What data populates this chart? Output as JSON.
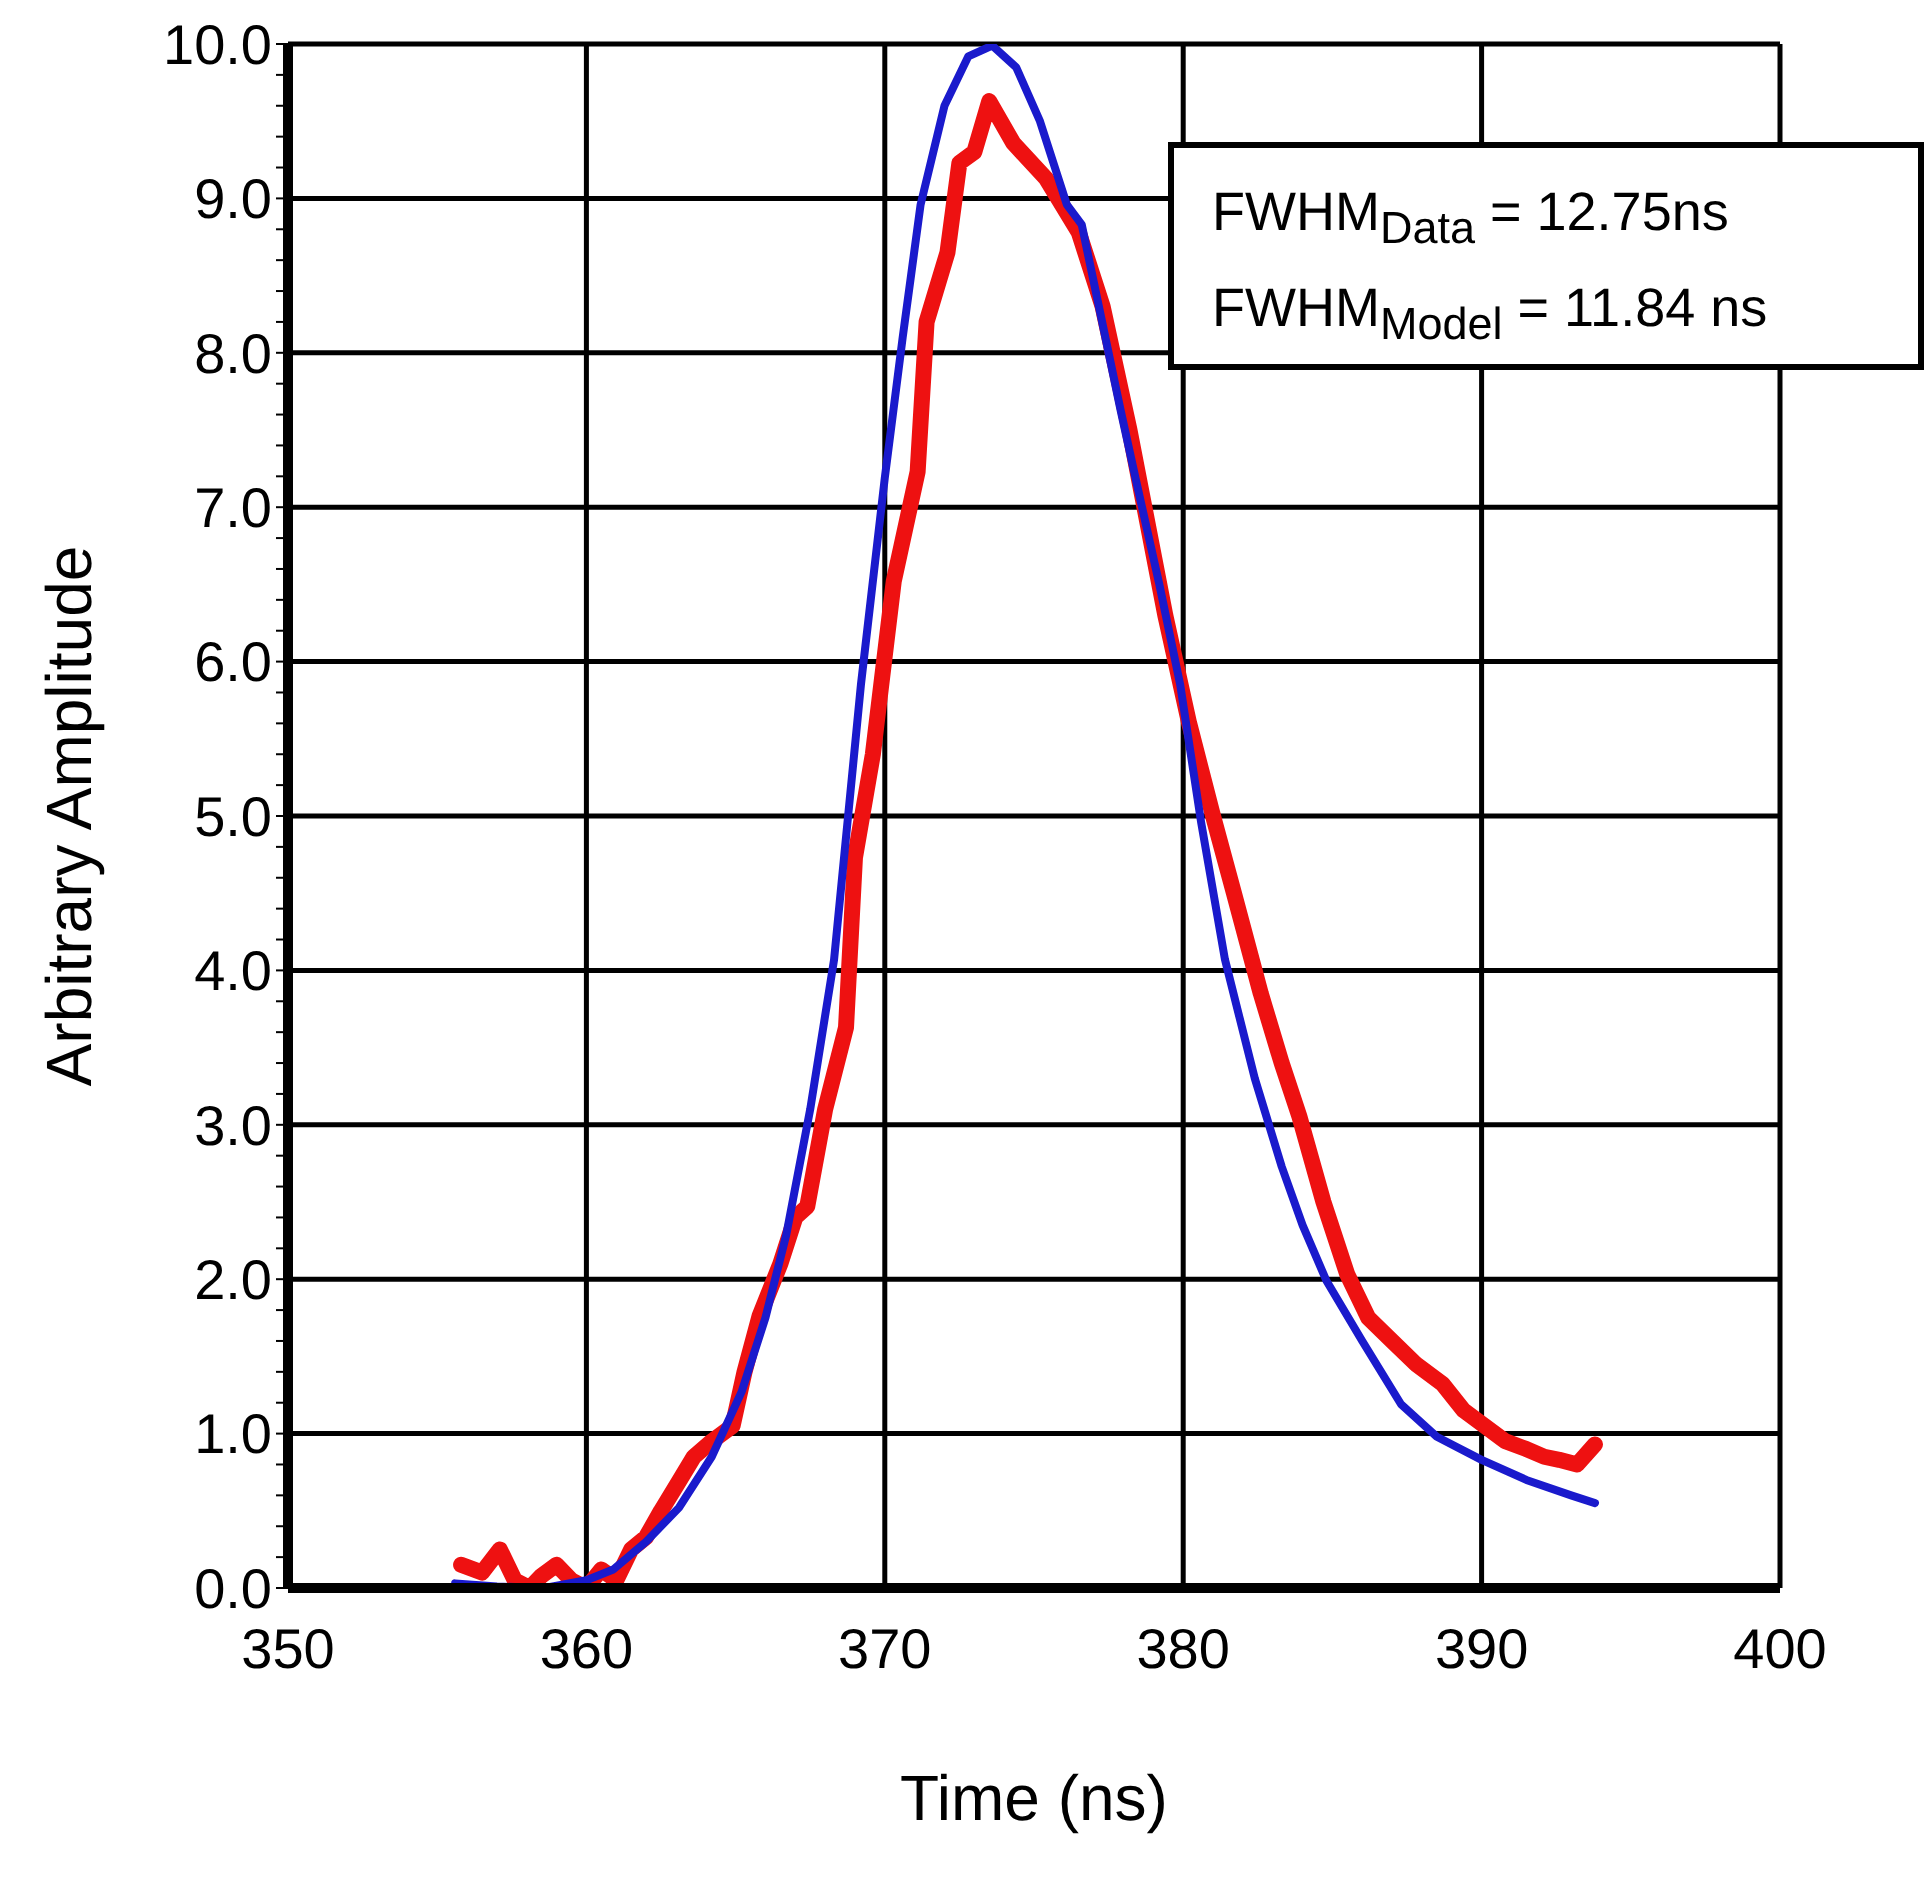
{
  "chart_data": {
    "type": "line",
    "xlabel": "Time (ns)",
    "ylabel": "Arbitrary Amplitude",
    "annotations": [
      "FWHM$_{Data}$ = 12.75ns",
      "FWHM$_{Model}$ = 11.84 ns"
    ],
    "xlim": [
      350,
      400
    ],
    "xticks": [
      350,
      360,
      370,
      380,
      390,
      400
    ],
    "ylim": [
      0,
      10
    ],
    "yticks": [
      {
        "value": 0,
        "label": "0.0"
      },
      {
        "value": 0.2,
        "label": null
      },
      {
        "value": 0.4,
        "label": null
      },
      {
        "value": 0.6,
        "label": null
      },
      {
        "value": 0.8,
        "label": null
      },
      {
        "value": 1,
        "label": "1.0"
      },
      {
        "value": 1.2,
        "label": null
      },
      {
        "value": 1.4,
        "label": null
      },
      {
        "value": 1.6,
        "label": null
      },
      {
        "value": 1.8,
        "label": null
      },
      {
        "value": 2,
        "label": "2.0"
      },
      {
        "value": 2.2,
        "label": null
      },
      {
        "value": 2.4,
        "label": null
      },
      {
        "value": 2.6,
        "label": null
      },
      {
        "value": 2.8,
        "label": null
      },
      {
        "value": 3,
        "label": "3.0"
      },
      {
        "value": 3.2,
        "label": null
      },
      {
        "value": 3.4,
        "label": null
      },
      {
        "value": 3.6,
        "label": null
      },
      {
        "value": 3.8,
        "label": null
      },
      {
        "value": 4,
        "label": "4.0"
      },
      {
        "value": 4.2,
        "label": null
      },
      {
        "value": 4.4,
        "label": null
      },
      {
        "value": 4.6,
        "label": null
      },
      {
        "value": 4.8,
        "label": null
      },
      {
        "value": 5,
        "label": "5.0"
      },
      {
        "value": 5.2,
        "label": null
      },
      {
        "value": 5.4,
        "label": null
      },
      {
        "value": 5.6,
        "label": null
      },
      {
        "value": 5.8,
        "label": null
      },
      {
        "value": 6,
        "label": "6.0"
      },
      {
        "value": 6.2,
        "label": null
      },
      {
        "value": 6.4,
        "label": null
      },
      {
        "value": 6.6,
        "label": null
      },
      {
        "value": 6.8,
        "label": null
      },
      {
        "value": 7,
        "label": "7.0"
      },
      {
        "value": 7.2,
        "label": null
      },
      {
        "value": 7.4,
        "label": null
      },
      {
        "value": 7.6,
        "label": null
      },
      {
        "value": 7.8,
        "label": null
      },
      {
        "value": 8,
        "label": "8.0"
      },
      {
        "value": 8.2,
        "label": null
      },
      {
        "value": 8.4,
        "label": null
      },
      {
        "value": 8.6,
        "label": null
      },
      {
        "value": 8.8,
        "label": null
      },
      {
        "value": 9,
        "label": "9.0"
      },
      {
        "value": 9.2,
        "label": null
      },
      {
        "value": 9.4,
        "label": null
      },
      {
        "value": 9.6,
        "label": null
      },
      {
        "value": 9.8,
        "label": null
      },
      {
        "value": 10,
        "label": "10.0"
      }
    ],
    "grid": true,
    "marker": "none",
    "line_style": "solid",
    "series": [
      {
        "color": "#ee1111",
        "x": [
          355.8,
          356.5,
          357.1,
          357.6,
          358.1,
          358.5,
          359.0,
          359.5,
          360.0,
          360.5,
          361.0,
          361.5,
          362.0,
          362.5,
          363.1,
          363.6,
          364.2,
          364.9,
          365.3,
          365.8,
          366.5,
          367.0,
          367.4,
          368.0,
          368.7,
          369.0,
          369.6,
          370.3,
          371.1,
          371.4,
          372.1,
          372.5,
          373.0,
          373.5,
          374.3,
          375.4,
          376.5,
          377.3,
          378.2,
          379.4,
          380.2,
          381.0,
          381.7,
          382.6,
          383.3,
          383.9,
          384.7,
          385.5,
          386.2,
          387.0,
          387.8,
          388.7,
          389.4,
          390.1,
          390.8,
          391.5,
          392.1,
          392.6,
          393.2,
          393.8
        ],
        "values": [
          0.15,
          0.1,
          0.25,
          0.05,
          0.0,
          0.08,
          0.15,
          0.05,
          0.0,
          0.12,
          0.05,
          0.25,
          0.33,
          0.5,
          0.69,
          0.85,
          0.95,
          1.05,
          1.4,
          1.76,
          2.1,
          2.4,
          2.47,
          3.1,
          3.63,
          4.73,
          5.4,
          6.52,
          7.23,
          8.2,
          8.65,
          9.23,
          9.3,
          9.63,
          9.36,
          9.13,
          8.78,
          8.3,
          7.5,
          6.3,
          5.6,
          5.0,
          4.5,
          3.85,
          3.4,
          3.05,
          2.5,
          2.03,
          1.75,
          1.6,
          1.45,
          1.32,
          1.15,
          1.05,
          0.95,
          0.9,
          0.85,
          0.83,
          0.8,
          0.93
        ]
      },
      {
        "color": "#1a1acc",
        "x": [
          355.6,
          357.0,
          358.6,
          360.0,
          360.9,
          362.0,
          363.1,
          364.2,
          365.2,
          366.0,
          366.7,
          367.5,
          368.3,
          369.2,
          370.0,
          370.6,
          371.2,
          372.0,
          372.8,
          373.6,
          374.4,
          375.2,
          376.1,
          376.6,
          377.9,
          378.4,
          379.2,
          379.9,
          380.6,
          381.4,
          382.4,
          383.3,
          384.0,
          384.8,
          386.0,
          387.3,
          388.5,
          390.0,
          391.5,
          393.0,
          393.8
        ],
        "values": [
          0.03,
          0.01,
          0.0,
          0.05,
          0.12,
          0.3,
          0.52,
          0.85,
          1.27,
          1.75,
          2.29,
          3.1,
          4.07,
          5.85,
          7.19,
          8.1,
          8.96,
          9.6,
          9.92,
          9.99,
          9.85,
          9.5,
          8.96,
          8.83,
          7.63,
          7.19,
          6.5,
          5.85,
          4.96,
          4.07,
          3.3,
          2.73,
          2.35,
          1.99,
          1.6,
          1.19,
          0.98,
          0.83,
          0.7,
          0.6,
          0.55
        ]
      }
    ]
  }
}
